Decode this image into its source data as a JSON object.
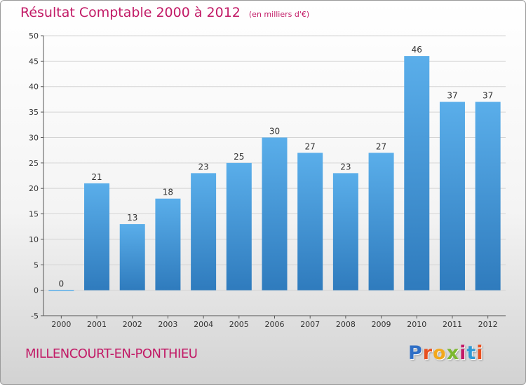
{
  "header": {
    "title": "Résultat Comptable 2000 à 2012",
    "unit": "(en milliers d'€)"
  },
  "footer": {
    "commune": "MILLENCOURT-EN-PONTHIEU",
    "logo": "Proxiti",
    "logo_letters": [
      "P",
      "r",
      "o",
      "x",
      "i",
      "t",
      "i"
    ],
    "logo_colors": [
      "#2f6fc6",
      "#e8501f",
      "#f2a81c",
      "#7cb82f",
      "#c21a66",
      "#2f9ad6",
      "#e8501f"
    ]
  },
  "colors": {
    "bar_light": "#5aaeea",
    "bar_dark": "#2f7bbd",
    "grid": "#d4d4d4",
    "axis": "#555555",
    "accent": "#c21a66"
  },
  "chart_data": {
    "type": "bar",
    "title": "Résultat Comptable 2000 à 2012",
    "subtitle": "(en milliers d'€)",
    "xlabel": "",
    "ylabel": "",
    "categories": [
      "2000",
      "2001",
      "2002",
      "2003",
      "2004",
      "2005",
      "2006",
      "2007",
      "2008",
      "2009",
      "2010",
      "2011",
      "2012"
    ],
    "values": [
      0,
      21,
      13,
      18,
      23,
      25,
      30,
      27,
      23,
      27,
      46,
      37,
      37
    ],
    "ylim": [
      -5,
      50
    ],
    "yticks": [
      -5,
      0,
      5,
      10,
      15,
      20,
      25,
      30,
      35,
      40,
      45,
      50
    ],
    "grid": true,
    "legend": "none"
  }
}
